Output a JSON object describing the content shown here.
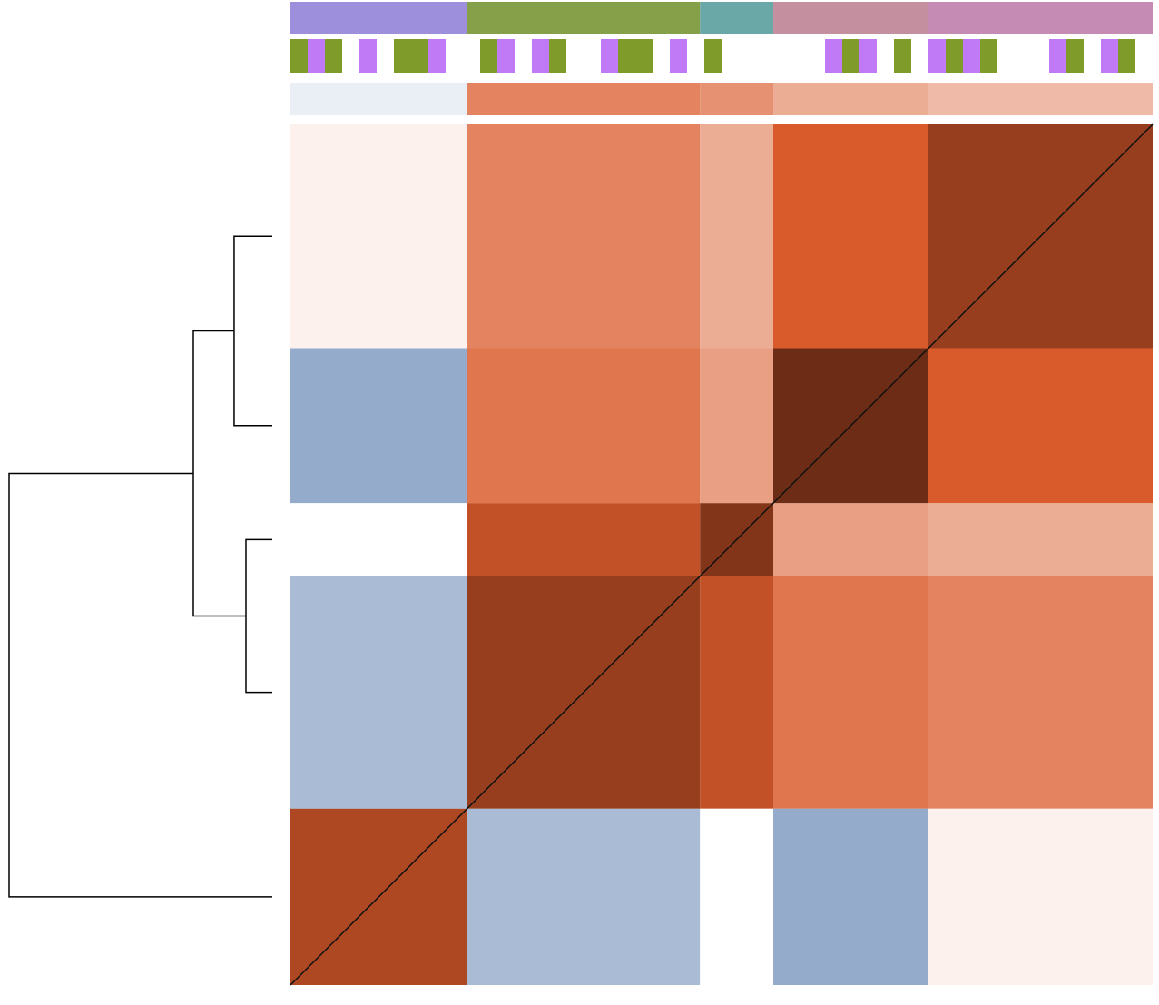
{
  "chart_data": {
    "type": "heatmap",
    "x_edges": [
      0,
      41,
      95,
      112,
      148,
      200
    ],
    "y_edges": [
      0,
      41,
      95,
      112,
      148,
      200
    ],
    "values": [
      [
        0.7,
        -0.4,
        0.0,
        -0.5,
        0.05
      ],
      [
        -0.4,
        0.75,
        0.65,
        0.5,
        0.45
      ],
      [
        0.0,
        0.65,
        0.8,
        0.35,
        0.3
      ],
      [
        -0.5,
        0.5,
        0.35,
        0.85,
        0.6
      ],
      [
        0.05,
        0.45,
        0.3,
        0.6,
        0.75
      ]
    ],
    "vlim": [
      -1,
      1
    ],
    "colormap_stops": [
      -1,
      0,
      0.6,
      1
    ],
    "colormap": [
      "#2b5797",
      "#ffffff",
      "#d95a2b",
      "#2a1008"
    ],
    "group_colors": [
      "#9d8fdb",
      "#86a04a",
      "#6aa8a8",
      "#c48f9f",
      "#c58bb5"
    ],
    "group_scores": [
      -0.1,
      0.45,
      0.4,
      0.3,
      0.25
    ],
    "flags": [
      1,
      0,
      1,
      null,
      0,
      null,
      1,
      1,
      0,
      null,
      null,
      1,
      0,
      null,
      0,
      1,
      null,
      null,
      0,
      1,
      1,
      null,
      0,
      null,
      1,
      null,
      null,
      null,
      null,
      null,
      null,
      0,
      1,
      0,
      null,
      1,
      null,
      0,
      1,
      0,
      1,
      null,
      null,
      null,
      0,
      1,
      null,
      0,
      1,
      null
    ],
    "flag_colors": [
      "#c07af5",
      "#7f9c2a"
    ],
    "linkage": [
      [
        3,
        4,
        0.145
      ],
      [
        1,
        2,
        0.1
      ],
      [
        5,
        6,
        0.3
      ],
      [
        0,
        7,
        1.0
      ]
    ]
  }
}
